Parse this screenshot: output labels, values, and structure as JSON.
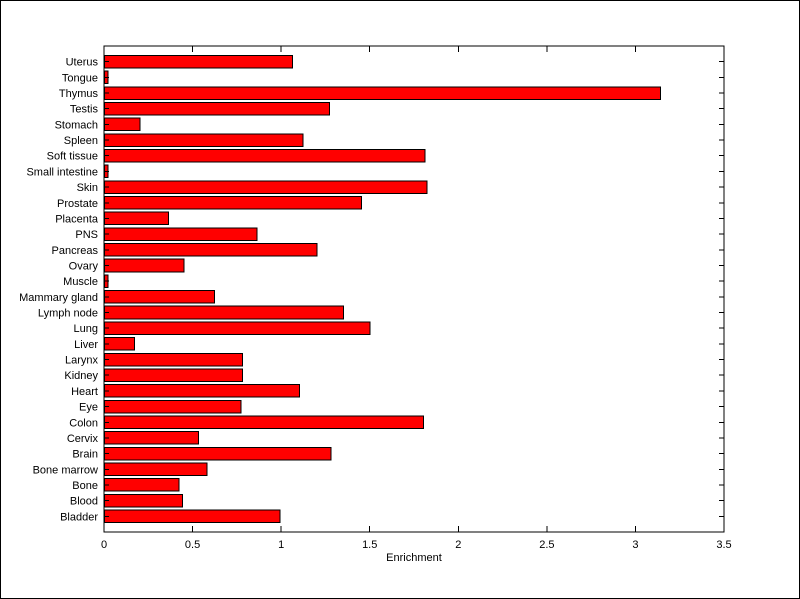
{
  "figure": {
    "background": "#ffffff",
    "border_color": "#000000"
  },
  "chart_data": {
    "type": "bar",
    "orientation": "horizontal",
    "title": "",
    "xlabel": "Enrichment",
    "ylabel": "",
    "xlim": [
      0,
      3.5
    ],
    "xticks": [
      0,
      0.5,
      1,
      1.5,
      2,
      2.5,
      3,
      3.5
    ],
    "xtick_labels": [
      "0",
      "0.5",
      "1",
      "1.5",
      "2",
      "2.5",
      "3",
      "3.5"
    ],
    "grid": false,
    "legend": "none",
    "bar_color": "#ff0000",
    "bar_edge_color": "#000000",
    "axis_color": "#000000",
    "categories_top_to_bottom": [
      "Uterus",
      "Tongue",
      "Thymus",
      "Testis",
      "Stomach",
      "Spleen",
      "Soft tissue",
      "Small intestine",
      "Skin",
      "Prostate",
      "Placenta",
      "PNS",
      "Pancreas",
      "Ovary",
      "Muscle",
      "Mammary gland",
      "Lymph node",
      "Lung",
      "Liver",
      "Larynx",
      "Kidney",
      "Heart",
      "Eye",
      "Colon",
      "Cervix",
      "Brain",
      "Bone marrow",
      "Bone",
      "Blood",
      "Bladder"
    ],
    "values": [
      1.06,
      0.02,
      3.14,
      1.27,
      0.2,
      1.12,
      1.81,
      0.02,
      1.82,
      1.45,
      0.36,
      0.86,
      1.2,
      0.45,
      0.02,
      0.62,
      1.35,
      1.5,
      0.17,
      0.78,
      0.78,
      1.1,
      0.77,
      1.8,
      0.53,
      1.28,
      0.58,
      0.42,
      0.44,
      0.99
    ]
  }
}
